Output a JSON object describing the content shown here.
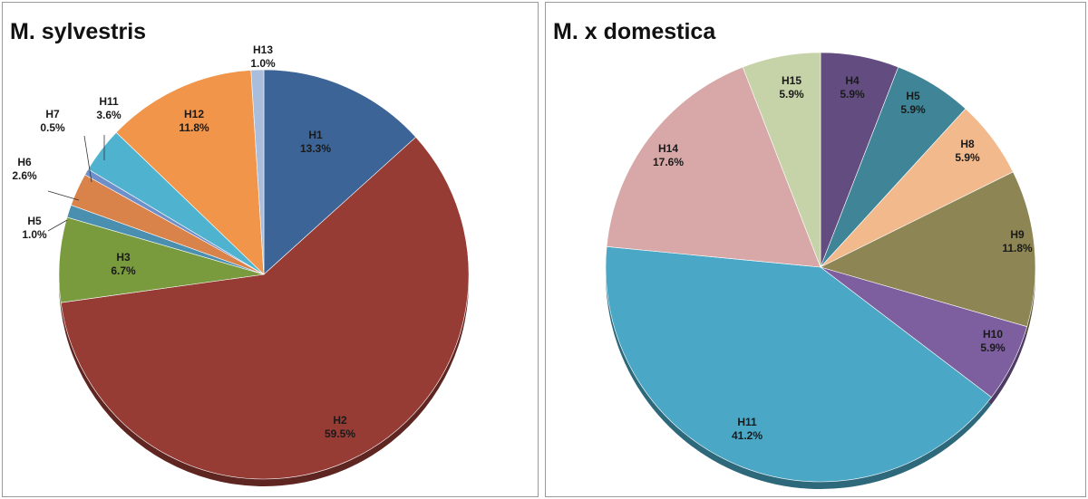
{
  "chart_data": [
    {
      "type": "pie",
      "title": "M. sylvestris",
      "categories": [
        "H1",
        "H2",
        "H3",
        "H5",
        "H6",
        "H7",
        "H11",
        "H12",
        "H13"
      ],
      "values": [
        13.3,
        59.5,
        6.7,
        1.0,
        2.6,
        0.5,
        3.6,
        11.8,
        1.0
      ],
      "value_labels": [
        "13.3%",
        "59.5%",
        "6.7%",
        "1.0%",
        "2.6%",
        "0.5%",
        "3.6%",
        "11.8%",
        "1.0%"
      ],
      "colors": [
        "#3c6496",
        "#973b35",
        "#7a9a3e",
        "#4a8fb0",
        "#d9824a",
        "#6f8fc9",
        "#4fb3d0",
        "#f0954a",
        "#a9bedd"
      ],
      "start_angle_deg": 0,
      "direction": "clockwise",
      "legend": "none"
    },
    {
      "type": "pie",
      "title": "M. x domestica",
      "categories": [
        "H4",
        "H5",
        "H8",
        "H9",
        "H10",
        "H11",
        "H14",
        "H15"
      ],
      "values": [
        5.9,
        5.9,
        5.9,
        11.8,
        5.9,
        41.2,
        17.6,
        5.9
      ],
      "value_labels": [
        "5.9%",
        "5.9%",
        "5.9%",
        "11.8%",
        "5.9%",
        "41.2%",
        "17.6%",
        "5.9%"
      ],
      "colors": [
        "#634d80",
        "#3f8597",
        "#f1b98c",
        "#8d8553",
        "#7d5f9f",
        "#4aa8c6",
        "#d8a8a8",
        "#c6d3a9"
      ],
      "start_angle_deg": 0,
      "direction": "clockwise",
      "legend": "none"
    }
  ]
}
